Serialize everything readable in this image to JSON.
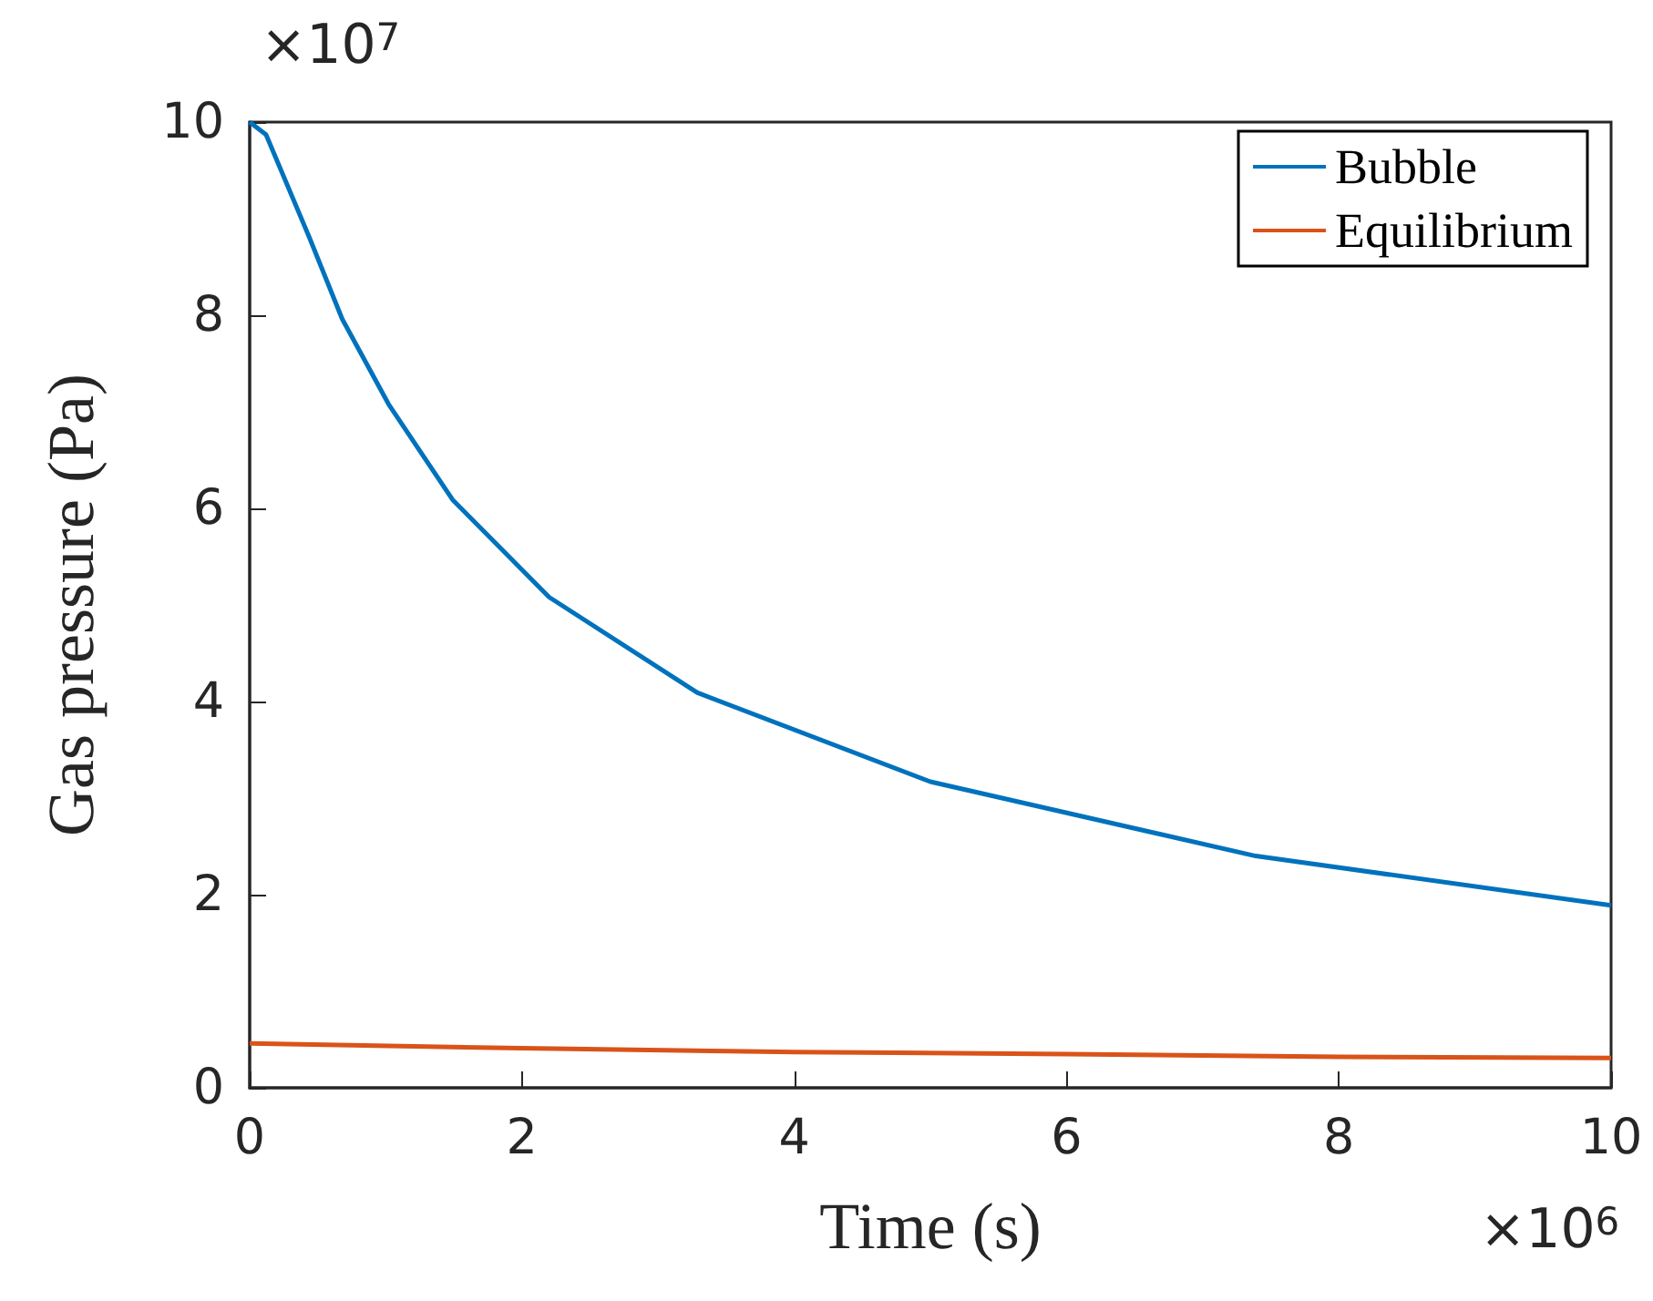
{
  "chart_data": {
    "type": "line",
    "xlabel": "Time (s)",
    "ylabel": "Gas pressure (Pa)",
    "annotations": [
      "×10$^{7}$",
      "×10$^{6}$"
    ],
    "series": [
      {
        "name": "Bubble",
        "color": "#0072bd",
        "x": [
          0,
          0.12,
          0.44,
          0.68,
          1.02,
          1.49,
          2.2,
          3.29,
          5,
          7.39,
          10
        ],
        "values": [
          10,
          9.87,
          8.8,
          7.96,
          7.08,
          6.09,
          5.08,
          4.09,
          3.17,
          2.4,
          1.89
        ]
      },
      {
        "name": "Equilibrium",
        "color": "#d95319",
        "x": [
          0,
          2,
          4,
          6,
          8,
          10
        ],
        "values": [
          0.46,
          0.41,
          0.37,
          0.35,
          0.32,
          0.31
        ]
      }
    ],
    "xlim": [
      0,
      10
    ],
    "xticks": [
      0,
      2,
      4,
      6,
      8,
      10
    ],
    "ylim": [
      0,
      10
    ],
    "yticks": [
      0,
      2,
      4,
      6,
      8,
      10
    ],
    "grid": false,
    "legend": "top right",
    "marker": "none",
    "line_style": "solid"
  }
}
